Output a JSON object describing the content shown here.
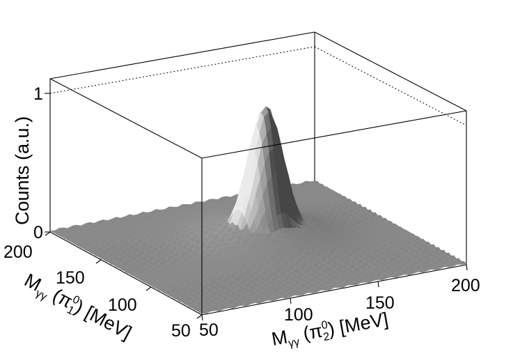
{
  "chart_data": {
    "type": "surface3d",
    "title": "",
    "zlabel": "Counts (a.u.)",
    "xlabel": {
      "main": "M",
      "sub": "γγ",
      "rest": " (π",
      "sup": "0",
      "sub2": "2",
      "tail": ") [MeV]"
    },
    "ylabel": {
      "main": "M",
      "sub": "γγ",
      "rest": " (π",
      "sup": "0",
      "sub2": "1",
      "tail": ") [MeV]"
    },
    "xlim": [
      50,
      200
    ],
    "ylim": [
      50,
      200
    ],
    "zlim": [
      0,
      1
    ],
    "x_ticks": [
      "50",
      "100",
      "150",
      "200"
    ],
    "y_ticks": [
      "50",
      "100",
      "150",
      "200"
    ],
    "z_ticks": [
      "0",
      "1"
    ],
    "peak": {
      "x": 135,
      "y": 135,
      "height": 0.95,
      "width_mev": 9
    },
    "background_level": 0.02,
    "surface_color": "#8a8a8a",
    "grid": false
  }
}
